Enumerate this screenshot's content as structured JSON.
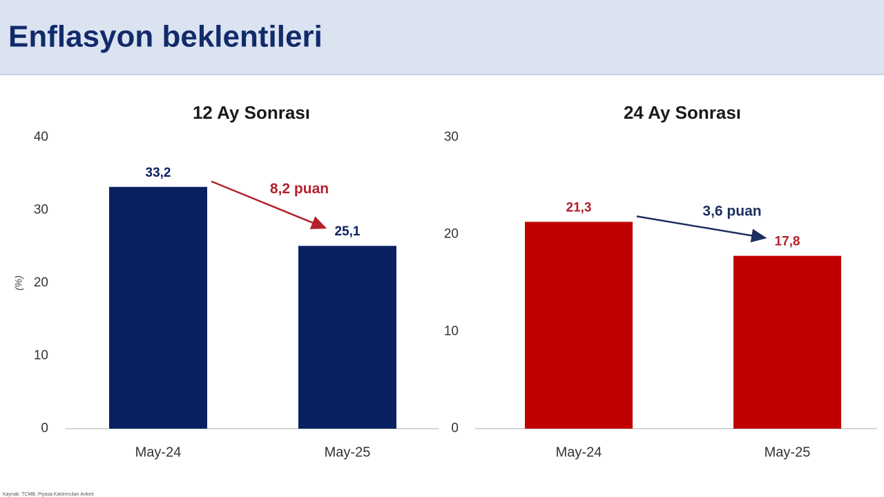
{
  "title": "Enflasyon beklentileri",
  "source": "Kaynak: TCMB, Piyasa Katılımcıları Anketi",
  "chart_data": [
    {
      "type": "bar",
      "title": "12 Ay Sonrası",
      "y_label": "(%)",
      "categories": [
        "May-24",
        "May-25"
      ],
      "values": [
        33.2,
        25.1
      ],
      "value_labels": [
        "33,2",
        "25,1"
      ],
      "color": "#0a2161",
      "label_color": "#0a2161",
      "ylim": [
        0,
        40
      ],
      "yticks": [
        0,
        10,
        20,
        30,
        40
      ],
      "annotation": "8,2 puan",
      "annotation_color": "#b3202a"
    },
    {
      "type": "bar",
      "title": "24 Ay Sonrası",
      "categories": [
        "May-24",
        "May-25"
      ],
      "values": [
        21.3,
        17.8
      ],
      "value_labels": [
        "21,3",
        "17,8"
      ],
      "color": "#c00000",
      "label_color": "#b3202a",
      "ylim": [
        0,
        30
      ],
      "yticks": [
        0,
        10,
        20,
        30
      ],
      "annotation": "3,6 puan",
      "annotation_color": "#1c2f5e"
    }
  ]
}
